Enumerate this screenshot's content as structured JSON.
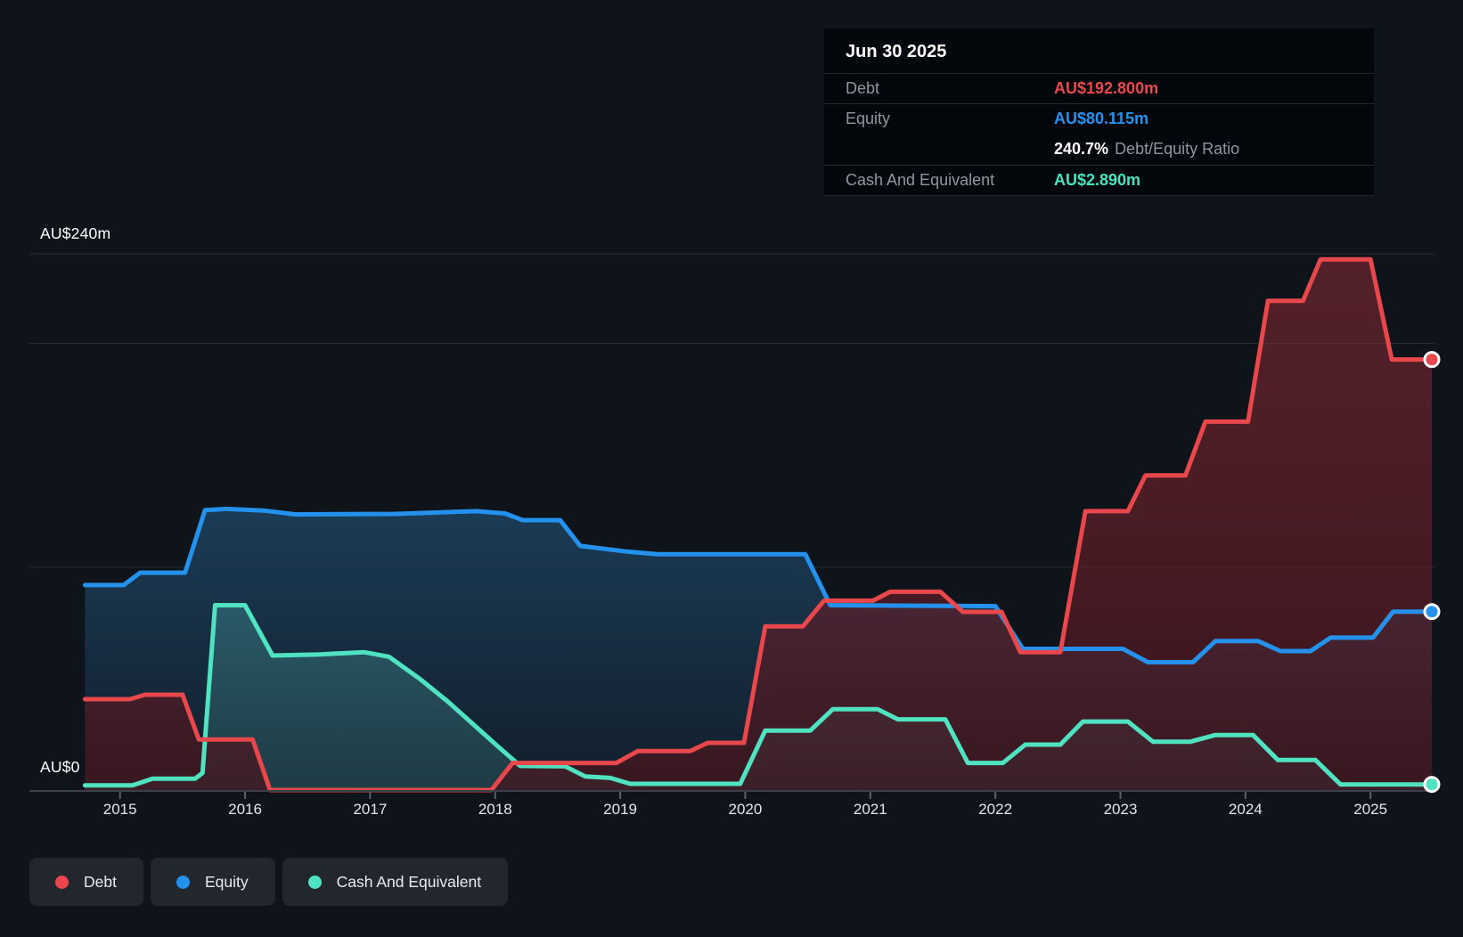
{
  "tooltip": {
    "date": "Jun 30 2025",
    "debt_label": "Debt",
    "debt_value": "AU$192.800m",
    "equity_label": "Equity",
    "equity_value": "AU$80.115m",
    "ratio_value": "240.7%",
    "ratio_label": "Debt/Equity Ratio",
    "cash_label": "Cash And Equivalent",
    "cash_value": "AU$2.890m"
  },
  "y_axis": {
    "top_label": "AU$240m",
    "zero_label": "AU$0"
  },
  "x_axis": {
    "years": [
      "2015",
      "2016",
      "2017",
      "2018",
      "2019",
      "2020",
      "2021",
      "2022",
      "2023",
      "2024",
      "2025"
    ]
  },
  "legend": {
    "items": [
      {
        "label": "Debt",
        "color": "#e8474b"
      },
      {
        "label": "Equity",
        "color": "#2492ec"
      },
      {
        "label": "Cash And Equivalent",
        "color": "#4fe3c2"
      }
    ]
  },
  "colors": {
    "background": "#0f131a",
    "grid": "rgba(255,255,255,0.10)",
    "axis": "#3a414b",
    "debt_line": "#e8474b",
    "equity_line": "#2492ec",
    "cash_line": "#4fe3c2",
    "debt_fill_top": "rgba(150,45,55,0.50)",
    "debt_fill_bottom": "rgba(70,20,28,0.72)",
    "equity_fill_top": "rgba(27,62,90,0.95)",
    "equity_fill_bottom": "rgba(19,31,44,0.92)",
    "cash_fill_top": "rgba(43,96,107,0.88)",
    "cash_fill_bottom": "rgba(32,62,72,0.88)"
  },
  "chart_data": {
    "type": "area",
    "unit": "AU$ millions",
    "ylim": [
      0,
      240
    ],
    "xlim": [
      2014.72,
      2025.49
    ],
    "grid_values": [
      0,
      100,
      200,
      240
    ],
    "x_ticks": [
      2015,
      2016,
      2017,
      2018,
      2019,
      2020,
      2021,
      2022,
      2023,
      2024,
      2025
    ],
    "legend_position": "bottom-left",
    "series": [
      {
        "name": "Debt",
        "end_value": 192.8,
        "points": [
          [
            2014.72,
            41
          ],
          [
            2015.08,
            41
          ],
          [
            2015.2,
            43
          ],
          [
            2015.5,
            43
          ],
          [
            2015.63,
            23
          ],
          [
            2016.06,
            23
          ],
          [
            2016.2,
            0.4
          ],
          [
            2017.97,
            0.4
          ],
          [
            2018.14,
            12.5
          ],
          [
            2018.97,
            12.5
          ],
          [
            2019.14,
            17.8
          ],
          [
            2019.56,
            17.8
          ],
          [
            2019.7,
            21.5
          ],
          [
            2019.99,
            21.5
          ],
          [
            2020.16,
            73.5
          ],
          [
            2020.46,
            73.5
          ],
          [
            2020.63,
            85
          ],
          [
            2021.02,
            85
          ],
          [
            2021.16,
            89
          ],
          [
            2021.56,
            89
          ],
          [
            2021.74,
            80
          ],
          [
            2022.05,
            80
          ],
          [
            2022.2,
            62
          ],
          [
            2022.52,
            62
          ],
          [
            2022.72,
            125
          ],
          [
            2023.06,
            125
          ],
          [
            2023.2,
            141
          ],
          [
            2023.52,
            141
          ],
          [
            2023.68,
            165
          ],
          [
            2024.02,
            165
          ],
          [
            2024.18,
            219
          ],
          [
            2024.46,
            219
          ],
          [
            2024.6,
            237.5
          ],
          [
            2025.0,
            237.5
          ],
          [
            2025.17,
            192.8
          ],
          [
            2025.49,
            192.8
          ]
        ]
      },
      {
        "name": "Equity",
        "end_value": 80.115,
        "points": [
          [
            2014.72,
            92
          ],
          [
            2015.03,
            92
          ],
          [
            2015.16,
            97.5
          ],
          [
            2015.52,
            97.5
          ],
          [
            2015.68,
            125.5
          ],
          [
            2015.85,
            126
          ],
          [
            2016.15,
            125.3
          ],
          [
            2016.4,
            123.6
          ],
          [
            2017.2,
            123.8
          ],
          [
            2017.85,
            125
          ],
          [
            2018.08,
            124
          ],
          [
            2018.22,
            121
          ],
          [
            2018.52,
            121
          ],
          [
            2018.68,
            109.5
          ],
          [
            2019.05,
            107
          ],
          [
            2019.3,
            105.8
          ],
          [
            2020.48,
            105.8
          ],
          [
            2020.68,
            83
          ],
          [
            2022.0,
            82.6
          ],
          [
            2022.22,
            63.5
          ],
          [
            2023.02,
            63.5
          ],
          [
            2023.22,
            57.5
          ],
          [
            2023.58,
            57.5
          ],
          [
            2023.76,
            67
          ],
          [
            2024.1,
            67
          ],
          [
            2024.28,
            62.5
          ],
          [
            2024.52,
            62.5
          ],
          [
            2024.68,
            68.5
          ],
          [
            2025.02,
            68.5
          ],
          [
            2025.18,
            80.1
          ],
          [
            2025.49,
            80.1
          ]
        ]
      },
      {
        "name": "Cash And Equivalent",
        "end_value": 2.89,
        "points": [
          [
            2014.72,
            2.5
          ],
          [
            2015.1,
            2.5
          ],
          [
            2015.26,
            5.5
          ],
          [
            2015.6,
            5.5
          ],
          [
            2015.66,
            8
          ],
          [
            2015.76,
            83
          ],
          [
            2016.0,
            83
          ],
          [
            2016.22,
            60.5
          ],
          [
            2016.6,
            61
          ],
          [
            2016.95,
            62
          ],
          [
            2017.15,
            60
          ],
          [
            2017.4,
            50
          ],
          [
            2017.62,
            40
          ],
          [
            2017.82,
            30
          ],
          [
            2018.02,
            20
          ],
          [
            2018.2,
            11.2
          ],
          [
            2018.56,
            11
          ],
          [
            2018.72,
            6.5
          ],
          [
            2018.92,
            5.8
          ],
          [
            2019.08,
            3.2
          ],
          [
            2019.96,
            3.2
          ],
          [
            2020.16,
            27
          ],
          [
            2020.52,
            27
          ],
          [
            2020.7,
            36.5
          ],
          [
            2021.06,
            36.5
          ],
          [
            2021.22,
            32
          ],
          [
            2021.6,
            32
          ],
          [
            2021.78,
            12.5
          ],
          [
            2022.06,
            12.5
          ],
          [
            2022.24,
            20.7
          ],
          [
            2022.52,
            20.7
          ],
          [
            2022.7,
            31
          ],
          [
            2023.06,
            31
          ],
          [
            2023.26,
            22
          ],
          [
            2023.56,
            22
          ],
          [
            2023.76,
            25
          ],
          [
            2024.06,
            25
          ],
          [
            2024.26,
            13.8
          ],
          [
            2024.56,
            13.8
          ],
          [
            2024.76,
            2.9
          ],
          [
            2025.49,
            2.89
          ]
        ]
      }
    ]
  }
}
